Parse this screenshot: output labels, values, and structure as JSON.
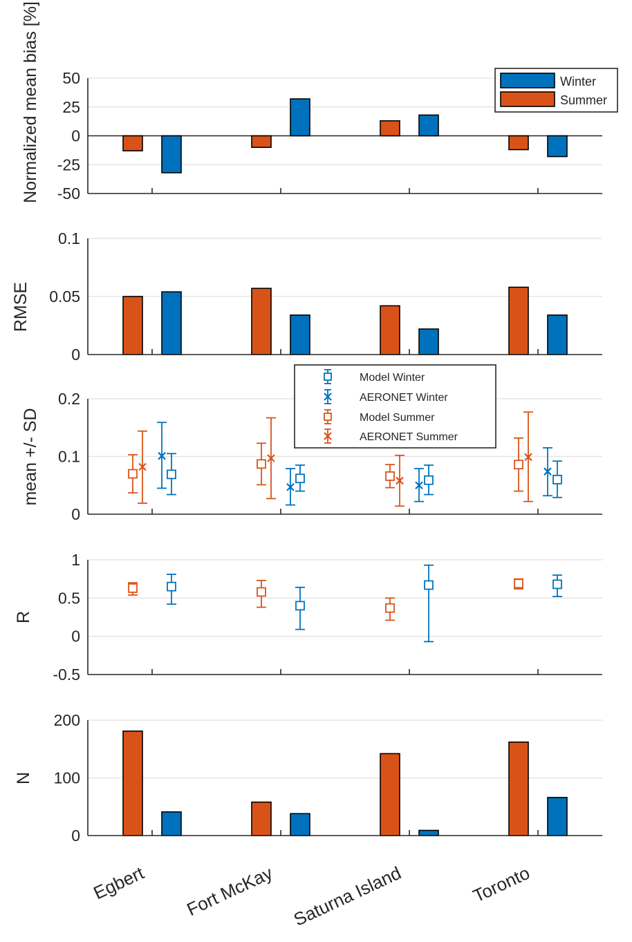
{
  "colors": {
    "winter": "#0072BD",
    "summer": "#D95319",
    "grid": "#E6E6E6",
    "axis": "#262626"
  },
  "chart_data": {
    "type": "multi-panel",
    "sites": [
      "Egbert",
      "Fort McKay",
      "Saturna Island",
      "Toronto"
    ],
    "panels": [
      {
        "id": "bias",
        "type": "bar",
        "ylabel": "Normalized mean bias [%]",
        "ylim": [
          -50,
          50
        ],
        "yticks": [
          -50,
          -25,
          0,
          25,
          50
        ],
        "yticklabels": [
          "-50",
          "-25",
          "0",
          "25",
          "50"
        ],
        "grid": true,
        "series": [
          {
            "name": "Summer",
            "values": [
              -13,
              -10,
              13,
              -12
            ]
          },
          {
            "name": "Winter",
            "values": [
              -32,
              32,
              18,
              -18
            ]
          }
        ],
        "legend": {
          "location": "top-right",
          "entries": [
            "Winter",
            "Summer"
          ]
        }
      },
      {
        "id": "rmse",
        "type": "bar",
        "ylabel": "RMSE",
        "ylim": [
          0,
          0.1
        ],
        "yticks": [
          0,
          0.05,
          0.1
        ],
        "yticklabels": [
          "0",
          "0.05",
          "0.1"
        ],
        "grid": true,
        "series": [
          {
            "name": "Summer",
            "values": [
              0.05,
              0.057,
              0.042,
              0.058
            ]
          },
          {
            "name": "Winter",
            "values": [
              0.054,
              0.034,
              0.022,
              0.034
            ]
          }
        ]
      },
      {
        "id": "mean",
        "type": "errorbar",
        "ylabel": "mean +/- SD",
        "ylim": [
          0,
          0.2
        ],
        "yticks": [
          0,
          0.1,
          0.2
        ],
        "yticklabels": [
          "0",
          "0.1",
          "0.2"
        ],
        "grid": true,
        "series": [
          {
            "name": "Model Summer",
            "marker": "square",
            "color": "summer",
            "mean": [
              0.07,
              0.087,
              0.066,
              0.086
            ],
            "lower": [
              0.037,
              0.051,
              0.046,
              0.04
            ],
            "upper": [
              0.103,
              0.123,
              0.086,
              0.132
            ]
          },
          {
            "name": "AERONET Summer",
            "marker": "x",
            "color": "summer",
            "mean": [
              0.082,
              0.097,
              0.058,
              0.099
            ],
            "lower": [
              0.019,
              0.027,
              0.014,
              0.022
            ],
            "upper": [
              0.144,
              0.167,
              0.102,
              0.177
            ]
          },
          {
            "name": "AERONET Winter",
            "marker": "x",
            "color": "winter",
            "mean": [
              0.101,
              0.047,
              0.05,
              0.074
            ],
            "lower": [
              0.045,
              0.016,
              0.022,
              0.032
            ],
            "upper": [
              0.159,
              0.079,
              0.079,
              0.115
            ]
          },
          {
            "name": "Model Winter",
            "marker": "square",
            "color": "winter",
            "mean": [
              0.069,
              0.062,
              0.059,
              0.06
            ],
            "lower": [
              0.034,
              0.04,
              0.034,
              0.029
            ],
            "upper": [
              0.105,
              0.085,
              0.085,
              0.092
            ]
          }
        ],
        "legend": {
          "location": "top-center",
          "entries": [
            "Model Winter",
            "AERONET Winter",
            "Model Summer",
            "AERONET Summer"
          ]
        }
      },
      {
        "id": "r",
        "type": "errorbar",
        "ylabel": "R",
        "ylim": [
          -0.5,
          1
        ],
        "yticks": [
          -0.5,
          0,
          0.5,
          1
        ],
        "yticklabels": [
          "-0.5",
          "0",
          "0.5",
          "1"
        ],
        "grid": true,
        "series": [
          {
            "name": "Summer",
            "marker": "square",
            "color": "summer",
            "mean": [
              0.63,
              0.58,
              0.37,
              0.69
            ],
            "lower": [
              0.54,
              0.38,
              0.21,
              0.62
            ],
            "upper": [
              0.7,
              0.73,
              0.5,
              0.75
            ]
          },
          {
            "name": "Winter",
            "marker": "square",
            "color": "winter",
            "mean": [
              0.65,
              0.4,
              0.67,
              0.68
            ],
            "lower": [
              0.42,
              0.09,
              -0.07,
              0.52
            ],
            "upper": [
              0.81,
              0.64,
              0.93,
              0.8
            ]
          }
        ]
      },
      {
        "id": "n",
        "type": "bar",
        "ylabel": "N",
        "ylim": [
          0,
          200
        ],
        "yticks": [
          0,
          100,
          200
        ],
        "yticklabels": [
          "0",
          "100",
          "200"
        ],
        "grid": true,
        "series": [
          {
            "name": "Summer",
            "values": [
              181,
              58,
              142,
              162
            ]
          },
          {
            "name": "Winter",
            "values": [
              41,
              38,
              9,
              66
            ]
          }
        ]
      }
    ]
  }
}
